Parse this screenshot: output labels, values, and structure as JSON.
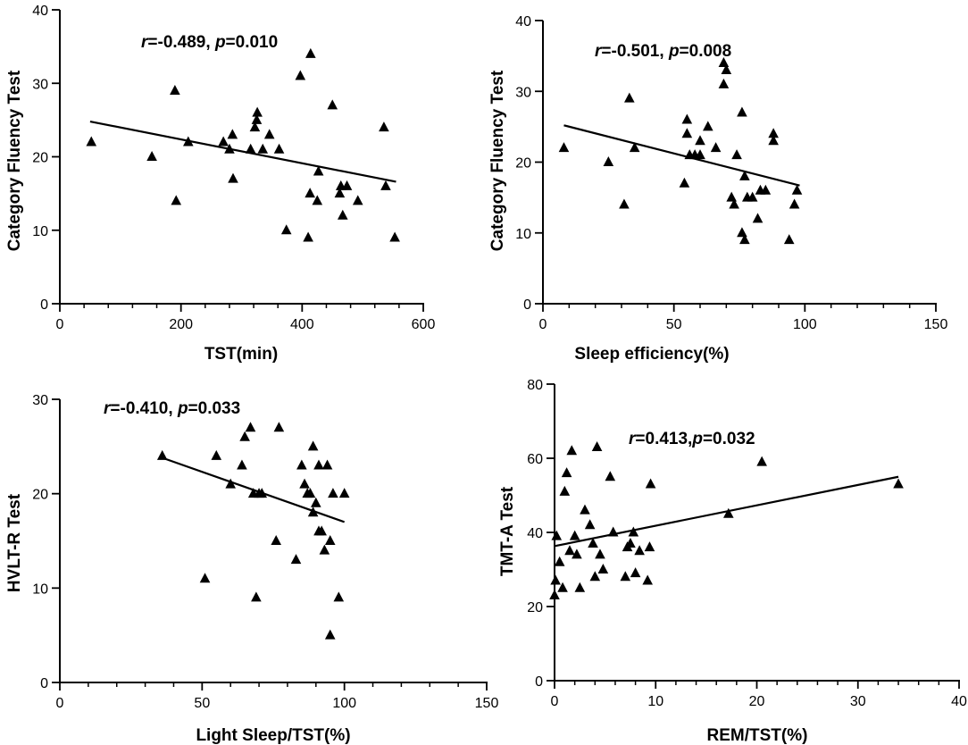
{
  "chart_data": [
    {
      "type": "scatter",
      "panel": "top-left",
      "xlabel": "TST(min)",
      "ylabel": "Category Fluency Test",
      "xlim": [
        0,
        600
      ],
      "ylim": [
        0,
        40
      ],
      "xticks": [
        0,
        200,
        400,
        600
      ],
      "yticks": [
        0,
        10,
        20,
        30,
        40
      ],
      "x_minor_step": 40,
      "x_tick_labels": [
        "0",
        "200",
        "400",
        "600"
      ],
      "y_tick_labels": [
        "0",
        "10",
        "20",
        "30",
        "40"
      ],
      "stat_r": "=-0.489, ",
      "stat_p": "=0.010",
      "regression": {
        "x": [
          50,
          555
        ],
        "y": [
          24.8,
          16.6
        ]
      },
      "points": {
        "x": [
          52,
          152,
          190,
          192,
          212,
          270,
          280,
          285,
          286,
          322,
          325,
          326,
          335,
          346,
          315,
          362,
          374,
          397,
          410,
          413,
          414,
          425,
          427,
          450,
          462,
          464,
          467,
          474,
          492,
          535,
          538,
          553
        ],
        "y": [
          22,
          20,
          29,
          14,
          22,
          22,
          21,
          23,
          17,
          24,
          25,
          26,
          21,
          23,
          21,
          21,
          10,
          31,
          9,
          15,
          34,
          14,
          18,
          27,
          15,
          16,
          12,
          16,
          14,
          24,
          16,
          9
        ]
      }
    },
    {
      "type": "scatter",
      "panel": "top-right",
      "xlabel": "Sleep efficiency(%)",
      "ylabel": "Category Fluency Test",
      "xlim": [
        0,
        150
      ],
      "ylim": [
        0,
        40
      ],
      "xticks": [
        0,
        50,
        100,
        150
      ],
      "yticks": [
        0,
        10,
        20,
        30,
        40
      ],
      "x_minor_step": 10,
      "x_tick_labels": [
        "0",
        "50",
        "100",
        "150"
      ],
      "y_tick_labels": [
        "0",
        "10",
        "20",
        "30",
        "40"
      ],
      "stat_r": "=-0.501, ",
      "stat_p": "=0.008",
      "regression": {
        "x": [
          8,
          98
        ],
        "y": [
          25.2,
          16.7
        ]
      },
      "points": {
        "x": [
          8,
          25,
          31,
          33,
          35,
          54,
          55,
          55,
          56,
          58,
          60,
          60,
          63,
          66,
          69,
          69,
          70,
          72,
          73,
          74,
          76,
          76,
          77,
          77,
          78,
          80,
          82,
          83,
          85,
          88,
          88,
          94,
          96,
          97
        ],
        "y": [
          22,
          20,
          14,
          29,
          22,
          17,
          26,
          24,
          21,
          21,
          23,
          21,
          25,
          22,
          31,
          34,
          33,
          15,
          14,
          21,
          27,
          10,
          9,
          18,
          15,
          15,
          12,
          16,
          16,
          24,
          23,
          9,
          14,
          16
        ]
      }
    },
    {
      "type": "scatter",
      "panel": "bottom-left",
      "xlabel": "Light Sleep/TST(%)",
      "ylabel": "HVLT-R Test",
      "xlim": [
        0,
        150
      ],
      "ylim": [
        0,
        30
      ],
      "xticks": [
        0,
        50,
        100,
        150
      ],
      "yticks": [
        0,
        10,
        20,
        30
      ],
      "x_minor_step": 10,
      "x_tick_labels": [
        "0",
        "50",
        "100",
        "150"
      ],
      "y_tick_labels": [
        "0",
        "10",
        "20",
        "30"
      ],
      "stat_r": "=-0.410, ",
      "stat_p": "=0.033",
      "regression": {
        "x": [
          36,
          100
        ],
        "y": [
          23.8,
          17.0
        ]
      },
      "points": {
        "x": [
          36,
          51,
          55,
          60,
          64,
          65,
          67,
          68,
          69,
          70,
          71,
          76,
          77,
          83,
          85,
          86,
          87,
          88,
          89,
          89,
          90,
          91,
          91,
          92,
          93,
          94,
          95,
          95,
          96,
          98,
          100
        ],
        "y": [
          24,
          11,
          24,
          21,
          23,
          26,
          27,
          20,
          9,
          20,
          20,
          15,
          27,
          13,
          23,
          21,
          20,
          20,
          25,
          18,
          19,
          23,
          16,
          16,
          14,
          23,
          15,
          5,
          20,
          9,
          20
        ]
      }
    },
    {
      "type": "scatter",
      "panel": "bottom-right",
      "xlabel": "REM/TST(%)",
      "ylabel": "TMT-A Test",
      "xlim": [
        0,
        40
      ],
      "ylim": [
        0,
        80
      ],
      "xticks": [
        0,
        10,
        20,
        30,
        40
      ],
      "yticks": [
        0,
        20,
        40,
        60,
        80
      ],
      "x_minor_step": 2,
      "x_tick_labels": [
        "0",
        "10",
        "20",
        "30",
        "40"
      ],
      "y_tick_labels": [
        "0",
        "20",
        "40",
        "60",
        "80"
      ],
      "stat_r": "=0.413,",
      "stat_p": "=0.032",
      "regression": {
        "x": [
          0,
          34
        ],
        "y": [
          36.3,
          55.0
        ]
      },
      "points": {
        "x": [
          0,
          0.1,
          0.2,
          0.5,
          0.8,
          1,
          1.2,
          1.5,
          1.7,
          2,
          2.2,
          2.5,
          3,
          3.5,
          3.8,
          4,
          4.2,
          4.5,
          4.8,
          5.5,
          5.8,
          7,
          7.2,
          7.5,
          7.8,
          8,
          8.4,
          9.2,
          9.4,
          9.5,
          17.2,
          20.5,
          34
        ],
        "y": [
          23,
          27,
          39,
          32,
          25,
          51,
          56,
          35,
          62,
          39,
          34,
          25,
          46,
          42,
          37,
          28,
          63,
          34,
          30,
          55,
          40,
          28,
          36,
          37,
          40,
          29,
          35,
          27,
          36,
          53,
          45,
          59,
          53
        ]
      }
    }
  ],
  "stat_labels": {
    "r": "r",
    "p": "p"
  }
}
